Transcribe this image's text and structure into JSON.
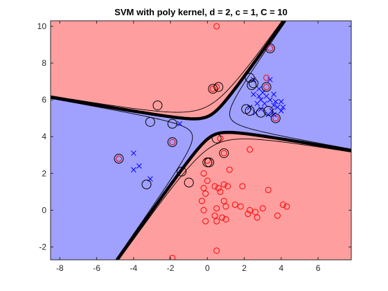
{
  "chart_data": {
    "type": "scatter",
    "title": "SVM with poly kernel, d = 2, c = 1, C = 10",
    "xlabel": "",
    "ylabel": "",
    "xlim": [
      -8.5,
      7.8
    ],
    "ylim": [
      -2.7,
      10.3
    ],
    "xticks": [
      -8,
      -6,
      -4,
      -2,
      0,
      2,
      4,
      6
    ],
    "yticks": [
      -2,
      0,
      2,
      4,
      6,
      8,
      10
    ],
    "grid": false,
    "colors": {
      "region_red": "#ff9e9e",
      "region_blue": "#a0a0ff",
      "class_red": "#ff0000",
      "class_blue": "#0000ff",
      "boundary": "#000000"
    },
    "decision_function": {
      "kernel": "poly",
      "degree": 2,
      "c": 1,
      "C": 10,
      "form": "f(x,y) = A*(y-y0)^2 - B*(x-x0)^2 - D*(x-x0)*(y-y0) - E",
      "x0": 0.2,
      "y0": 4.6,
      "A": 1.0,
      "B": 0.25,
      "D": 1.25,
      "E": 0.35,
      "margin_contours": [
        -1,
        1
      ],
      "decision_contour": 0
    },
    "series": [
      {
        "name": "",
        "marker": "o",
        "color": "#ff0000",
        "points": [
          [
            0.5,
            10.0
          ],
          [
            3.4,
            8.8
          ],
          [
            3.2,
            7.2
          ],
          [
            3.2,
            6.7
          ],
          [
            0.5,
            6.7
          ],
          [
            0.3,
            6.6
          ],
          [
            3.7,
            5.0
          ],
          [
            0.7,
            3.9
          ],
          [
            0.9,
            3.1
          ],
          [
            0.0,
            2.7
          ],
          [
            -1.9,
            3.7
          ],
          [
            -4.8,
            2.8
          ],
          [
            2.3,
            3.3
          ],
          [
            1.2,
            2.2
          ],
          [
            -0.2,
            2.0
          ],
          [
            1.9,
            1.3
          ],
          [
            0.0,
            1.6
          ],
          [
            -0.2,
            1.2
          ],
          [
            0.9,
            1.4
          ],
          [
            1.1,
            1.3
          ],
          [
            0.6,
            1.2
          ],
          [
            0.7,
            1.0
          ],
          [
            -0.1,
            0.9
          ],
          [
            0.4,
            1.3
          ],
          [
            -0.3,
            0.5
          ],
          [
            -0.2,
            0.0
          ],
          [
            0.5,
            0.1
          ],
          [
            0.9,
            0.5
          ],
          [
            1.0,
            0.2
          ],
          [
            1.5,
            0.3
          ],
          [
            1.8,
            0.2
          ],
          [
            0.4,
            -0.3
          ],
          [
            0.8,
            -0.4
          ],
          [
            -0.1,
            -0.6
          ],
          [
            0.5,
            -0.6
          ],
          [
            1.0,
            -0.5
          ],
          [
            2.7,
            -0.4
          ],
          [
            3.0,
            0.1
          ],
          [
            3.3,
            1.1
          ],
          [
            4.1,
            0.3
          ],
          [
            4.3,
            0.2
          ],
          [
            2.3,
            0.0
          ],
          [
            2.2,
            -0.2
          ],
          [
            2.6,
            -0.1
          ],
          [
            3.8,
            -0.3
          ],
          [
            0.5,
            -2.2
          ],
          [
            -1.9,
            -2.6
          ]
        ]
      },
      {
        "name": "",
        "marker": "x",
        "color": "#0000ff",
        "points": [
          [
            2.5,
            7.1
          ],
          [
            3.4,
            7.1
          ],
          [
            2.8,
            6.6
          ],
          [
            3.0,
            6.4
          ],
          [
            2.5,
            6.3
          ],
          [
            2.8,
            6.2
          ],
          [
            3.2,
            6.2
          ],
          [
            3.6,
            6.3
          ],
          [
            2.9,
            6.0
          ],
          [
            3.4,
            6.0
          ],
          [
            3.7,
            5.9
          ],
          [
            4.0,
            5.9
          ],
          [
            2.7,
            5.8
          ],
          [
            3.1,
            5.8
          ],
          [
            3.6,
            5.7
          ],
          [
            4.1,
            5.6
          ],
          [
            2.3,
            5.6
          ],
          [
            2.9,
            5.5
          ],
          [
            3.5,
            5.4
          ],
          [
            3.8,
            5.6
          ],
          [
            2.6,
            5.3
          ],
          [
            3.3,
            5.2
          ],
          [
            4.0,
            5.4
          ],
          [
            3.6,
            5.2
          ],
          [
            -1.5,
            4.7
          ],
          [
            -3.7,
            2.4
          ],
          [
            -4.0,
            2.2
          ],
          [
            -3.1,
            1.7
          ],
          [
            -4.0,
            3.1
          ]
        ]
      }
    ],
    "support_vectors": [
      [
        -3.1,
        4.8
      ],
      [
        -2.7,
        5.7
      ],
      [
        -1.9,
        4.7
      ],
      [
        -1.4,
        2.1
      ],
      [
        -1.0,
        1.5
      ],
      [
        -3.3,
        1.4
      ],
      [
        -4.8,
        2.8
      ],
      [
        0.1,
        2.6
      ],
      [
        0.0,
        2.6
      ],
      [
        0.5,
        3.9
      ],
      [
        0.9,
        3.1
      ],
      [
        0.3,
        6.6
      ],
      [
        0.6,
        6.7
      ],
      [
        2.3,
        7.2
      ],
      [
        2.4,
        6.8
      ],
      [
        2.5,
        6.9
      ],
      [
        2.1,
        5.5
      ],
      [
        2.3,
        5.4
      ],
      [
        2.9,
        5.3
      ],
      [
        3.3,
        5.4
      ],
      [
        3.2,
        6.7
      ],
      [
        3.4,
        8.8
      ],
      [
        3.7,
        5.0
      ],
      [
        -1.9,
        3.7
      ]
    ]
  }
}
